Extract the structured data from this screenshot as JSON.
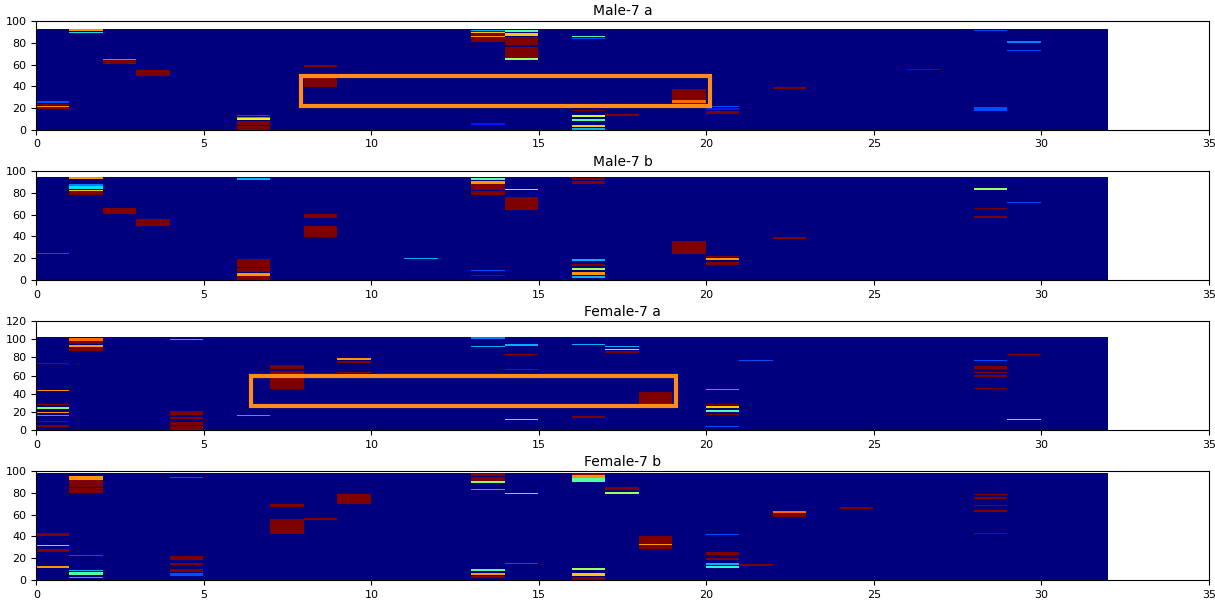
{
  "chart_data": [
    {
      "type": "heatmap",
      "title": "Male-7 a",
      "xlim": [
        0,
        35
      ],
      "xticks": [
        0,
        5,
        10,
        15,
        20,
        25,
        30,
        35
      ],
      "ylim": [
        0,
        100
      ],
      "yticks": [
        0,
        20,
        40,
        60,
        80,
        100
      ],
      "extent": [
        0,
        32,
        0,
        92
      ],
      "clim": [
        0,
        1
      ],
      "background": 0,
      "highlight": [
        7.9,
        22,
        20.1,
        49
      ],
      "cells": [
        [
          0,
          19,
          2,
          1
        ],
        [
          0,
          21,
          1,
          0.75
        ],
        [
          0,
          23,
          1,
          1
        ],
        [
          0,
          25,
          1,
          0.2
        ],
        [
          1,
          88,
          1,
          0.35
        ],
        [
          1,
          90,
          2,
          0.75
        ],
        [
          2,
          60,
          5,
          1
        ],
        [
          2,
          64,
          1,
          0.8
        ],
        [
          3,
          49,
          6,
          1
        ],
        [
          6,
          0,
          4,
          1
        ],
        [
          6,
          5,
          3,
          1
        ],
        [
          6,
          9,
          2,
          0.65
        ],
        [
          6,
          11,
          1,
          0.3
        ],
        [
          6,
          13,
          1,
          0.2
        ],
        [
          8,
          39,
          10,
          1
        ],
        [
          8,
          57,
          2,
          1
        ],
        [
          13,
          80,
          10,
          1
        ],
        [
          13,
          85,
          1,
          0.75
        ],
        [
          13,
          88,
          1,
          0.7
        ],
        [
          13,
          90,
          1,
          0.3
        ],
        [
          13,
          5,
          1,
          0.15
        ],
        [
          14,
          64,
          2,
          0.55
        ],
        [
          14,
          66,
          10,
          1
        ],
        [
          14,
          77,
          8,
          1
        ],
        [
          14,
          86,
          2,
          0.7
        ],
        [
          14,
          89,
          2,
          0.45
        ],
        [
          16,
          85,
          1,
          0.45
        ],
        [
          16,
          83,
          1,
          0.2
        ],
        [
          16,
          0,
          2,
          0.3
        ],
        [
          16,
          3,
          2,
          0.7
        ],
        [
          16,
          8,
          2,
          0.45
        ],
        [
          16,
          12,
          2,
          0.6
        ],
        [
          16,
          17,
          1,
          1
        ],
        [
          17,
          13,
          2,
          1
        ],
        [
          19,
          23,
          14,
          1
        ],
        [
          19,
          25,
          2,
          0.8
        ],
        [
          20,
          15,
          2,
          1
        ],
        [
          20,
          18,
          2,
          0.15
        ],
        [
          20,
          21,
          1,
          0.2
        ],
        [
          22,
          37,
          2,
          1
        ],
        [
          26,
          55,
          1,
          1
        ],
        [
          28,
          17,
          4,
          0.2
        ],
        [
          28,
          90,
          1,
          0.2
        ],
        [
          29,
          72,
          1,
          0.2
        ],
        [
          29,
          79,
          2,
          0.25
        ]
      ]
    },
    {
      "type": "heatmap",
      "title": "Male-7 b",
      "xlim": [
        0,
        35
      ],
      "xticks": [
        0,
        5,
        10,
        15,
        20,
        25,
        30,
        35
      ],
      "ylim": [
        0,
        100
      ],
      "yticks": [
        0,
        20,
        40,
        60,
        80,
        100
      ],
      "extent": [
        0,
        32,
        0,
        94
      ],
      "clim": [
        0,
        1
      ],
      "background": 0,
      "cells": [
        [
          0,
          24,
          1,
          0.2
        ],
        [
          1,
          78,
          3,
          1
        ],
        [
          1,
          81,
          1,
          0.7
        ],
        [
          1,
          83,
          3,
          0.35
        ],
        [
          1,
          86,
          2,
          0.25
        ],
        [
          1,
          92,
          2,
          0.75
        ],
        [
          2,
          60,
          6,
          1
        ],
        [
          3,
          49,
          7,
          1
        ],
        [
          6,
          0,
          4,
          1
        ],
        [
          6,
          4,
          2,
          0.75
        ],
        [
          6,
          7,
          4,
          1
        ],
        [
          6,
          12,
          4,
          1
        ],
        [
          6,
          16,
          3,
          1
        ],
        [
          6,
          91,
          2,
          0.3
        ],
        [
          8,
          39,
          10,
          1
        ],
        [
          8,
          57,
          3,
          1
        ],
        [
          11,
          19,
          1,
          0.3
        ],
        [
          13,
          78,
          3,
          1
        ],
        [
          13,
          82,
          6,
          1
        ],
        [
          13,
          88,
          2,
          0.75
        ],
        [
          13,
          91,
          2,
          0.45
        ],
        [
          13,
          4,
          1,
          1
        ],
        [
          13,
          8,
          1,
          0.2
        ],
        [
          14,
          64,
          10,
          1
        ],
        [
          14,
          74,
          2,
          1
        ],
        [
          14,
          82,
          1,
          0.5
        ],
        [
          16,
          2,
          2,
          0.3
        ],
        [
          16,
          5,
          2,
          0.75
        ],
        [
          16,
          9,
          2,
          0.55
        ],
        [
          16,
          13,
          2,
          1
        ],
        [
          16,
          17,
          2,
          0.3
        ],
        [
          16,
          88,
          2,
          1
        ],
        [
          16,
          91,
          2,
          1
        ],
        [
          19,
          24,
          12,
          1
        ],
        [
          20,
          14,
          2,
          1
        ],
        [
          20,
          18,
          2,
          0.75
        ],
        [
          20,
          21,
          1,
          1
        ],
        [
          22,
          37,
          2,
          1
        ],
        [
          28,
          82,
          2,
          0.55
        ],
        [
          28,
          65,
          1,
          1
        ],
        [
          28,
          57,
          1,
          1
        ],
        [
          29,
          70,
          1,
          0.2
        ]
      ]
    },
    {
      "type": "heatmap",
      "title": "Female-7 a",
      "xlim": [
        0,
        35
      ],
      "xticks": [
        0,
        5,
        10,
        15,
        20,
        25,
        30,
        35
      ],
      "ylim": [
        0,
        120
      ],
      "yticks": [
        0,
        20,
        40,
        60,
        80,
        100,
        120
      ],
      "extent": [
        0,
        32,
        0,
        102
      ],
      "clim": [
        0,
        1
      ],
      "background": 0,
      "highlight": [
        6.4,
        26,
        19.1,
        60
      ],
      "cells": [
        [
          0,
          3,
          2,
          1
        ],
        [
          0,
          9,
          1,
          1
        ],
        [
          0,
          15,
          1,
          0.3
        ],
        [
          0,
          19,
          1,
          0.75
        ],
        [
          0,
          23,
          2,
          0.5
        ],
        [
          0,
          27,
          1,
          1
        ],
        [
          0,
          43,
          1,
          0.75
        ],
        [
          0,
          72,
          1,
          1
        ],
        [
          1,
          87,
          4,
          1
        ],
        [
          1,
          91,
          2,
          0.75
        ],
        [
          1,
          94,
          4,
          1
        ],
        [
          1,
          98,
          3,
          0.8
        ],
        [
          4,
          0,
          4,
          1
        ],
        [
          4,
          5,
          4,
          1
        ],
        [
          4,
          12,
          2,
          1
        ],
        [
          4,
          17,
          4,
          1
        ],
        [
          4,
          99,
          1,
          0.3
        ],
        [
          6,
          15,
          1,
          0.3
        ],
        [
          7,
          45,
          12,
          1
        ],
        [
          7,
          60,
          5,
          1
        ],
        [
          7,
          67,
          4,
          1
        ],
        [
          9,
          62,
          2,
          1
        ],
        [
          9,
          73,
          3,
          1
        ],
        [
          9,
          77,
          2,
          0.75
        ],
        [
          13,
          91,
          1,
          0.3
        ],
        [
          13,
          100,
          2,
          0.25
        ],
        [
          14,
          11,
          1,
          0.4
        ],
        [
          14,
          66,
          1,
          1
        ],
        [
          14,
          82,
          1,
          1
        ],
        [
          14,
          92,
          2,
          0.3
        ],
        [
          16,
          13,
          2,
          1
        ],
        [
          16,
          16,
          1,
          0.75
        ],
        [
          16,
          93,
          1,
          0.3
        ],
        [
          17,
          84,
          3,
          1
        ],
        [
          17,
          88,
          1,
          0.5
        ],
        [
          17,
          91,
          1,
          0.3
        ],
        [
          18,
          26,
          16,
          1
        ],
        [
          20,
          3,
          1,
          0.2
        ],
        [
          20,
          16,
          2,
          1
        ],
        [
          20,
          20,
          2,
          0.45
        ],
        [
          20,
          24,
          2,
          0.7
        ],
        [
          20,
          27,
          1,
          1
        ],
        [
          20,
          44,
          1,
          0.3
        ],
        [
          21,
          76,
          1,
          0.2
        ],
        [
          22,
          62,
          1,
          1
        ],
        [
          28,
          45,
          1,
          1
        ],
        [
          28,
          58,
          2,
          1
        ],
        [
          28,
          62,
          2,
          1
        ],
        [
          28,
          67,
          3,
          1
        ],
        [
          28,
          76,
          1,
          0.2
        ],
        [
          29,
          11,
          1,
          0.4
        ],
        [
          29,
          82,
          1,
          1
        ]
      ]
    },
    {
      "type": "heatmap",
      "title": "Female-7 b",
      "xlim": [
        0,
        35
      ],
      "xticks": [
        0,
        5,
        10,
        15,
        20,
        25,
        30,
        35
      ],
      "ylim": [
        0,
        100
      ],
      "yticks": [
        0,
        20,
        40,
        60,
        80,
        100
      ],
      "extent": [
        0,
        32,
        0,
        98
      ],
      "clim": [
        0,
        1
      ],
      "background": 0,
      "cells": [
        [
          0,
          11,
          2,
          0.75
        ],
        [
          0,
          26,
          2,
          1
        ],
        [
          0,
          31,
          1,
          0.4
        ],
        [
          0,
          40,
          3,
          1
        ],
        [
          1,
          2,
          1,
          0.3
        ],
        [
          1,
          5,
          2,
          0.45
        ],
        [
          1,
          8,
          1,
          0.3
        ],
        [
          1,
          22,
          1,
          0.2
        ],
        [
          1,
          80,
          4,
          1
        ],
        [
          1,
          85,
          3,
          1
        ],
        [
          1,
          88,
          4,
          1
        ],
        [
          1,
          92,
          3,
          0.75
        ],
        [
          4,
          4,
          2,
          0.2
        ],
        [
          4,
          7,
          3,
          1
        ],
        [
          4,
          14,
          2,
          1
        ],
        [
          4,
          18,
          4,
          1
        ],
        [
          4,
          93,
          1,
          0.2
        ],
        [
          7,
          42,
          14,
          1
        ],
        [
          7,
          67,
          3,
          1
        ],
        [
          8,
          55,
          2,
          1
        ],
        [
          9,
          70,
          9,
          1
        ],
        [
          13,
          2,
          2,
          1
        ],
        [
          13,
          5,
          1,
          0.75
        ],
        [
          13,
          8,
          2,
          0.45
        ],
        [
          13,
          82,
          1,
          0.3
        ],
        [
          13,
          89,
          2,
          0.5
        ],
        [
          13,
          91,
          3,
          1
        ],
        [
          13,
          95,
          3,
          1
        ],
        [
          14,
          15,
          1,
          0.2
        ],
        [
          14,
          79,
          1,
          0.4
        ],
        [
          16,
          0,
          3,
          1
        ],
        [
          16,
          4,
          2,
          0.7
        ],
        [
          16,
          9,
          2,
          0.55
        ],
        [
          16,
          90,
          3,
          0.45
        ],
        [
          16,
          93,
          3,
          0.75
        ],
        [
          16,
          96,
          2,
          1
        ],
        [
          17,
          79,
          2,
          0.55
        ],
        [
          17,
          82,
          3,
          1
        ],
        [
          18,
          28,
          8,
          1
        ],
        [
          18,
          32,
          1,
          0.75
        ],
        [
          18,
          36,
          4,
          1
        ],
        [
          20,
          11,
          2,
          0.4
        ],
        [
          20,
          14,
          2,
          0.3
        ],
        [
          20,
          18,
          2,
          1
        ],
        [
          20,
          23,
          3,
          1
        ],
        [
          20,
          41,
          1,
          0.2
        ],
        [
          21,
          13,
          2,
          1
        ],
        [
          22,
          58,
          5,
          1
        ],
        [
          22,
          61,
          2,
          0.8
        ],
        [
          24,
          65,
          2,
          1
        ],
        [
          28,
          42,
          1,
          1
        ],
        [
          28,
          62,
          2,
          1
        ],
        [
          28,
          68,
          1,
          1
        ],
        [
          28,
          74,
          2,
          1
        ],
        [
          28,
          78,
          1,
          1
        ]
      ]
    }
  ]
}
